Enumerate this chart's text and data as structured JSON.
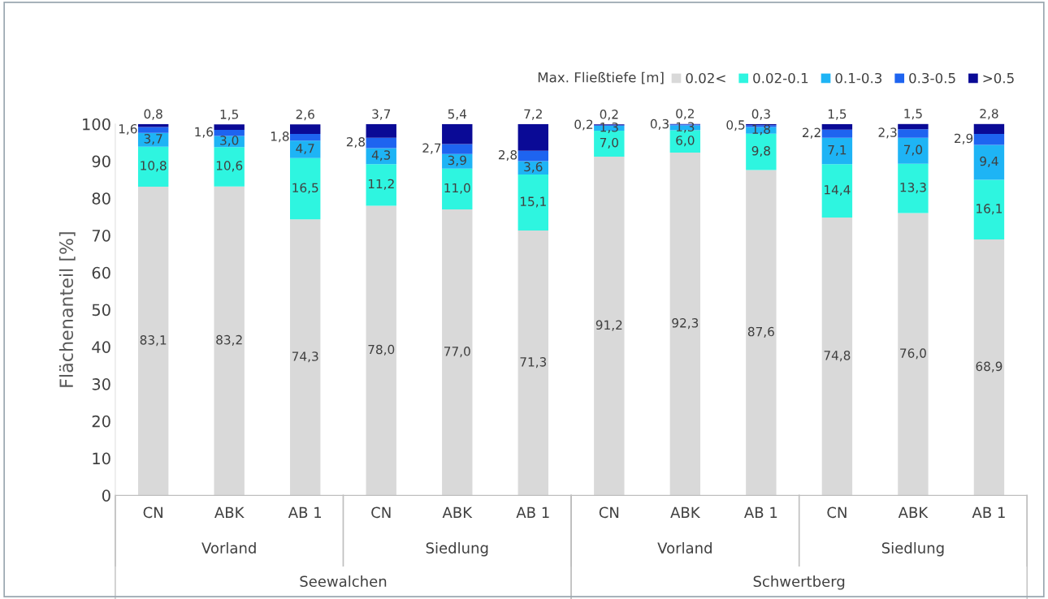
{
  "chart_data": {
    "type": "bar",
    "stacked": true,
    "ylabel": "Flächenanteil [%]",
    "legend_title": "Max. Fließtiefe [m]",
    "legend": "top right",
    "categories": [
      "CN",
      "ABK",
      "AB 1",
      "CN",
      "ABK",
      "AB 1",
      "CN",
      "ABK",
      "AB 1",
      "CN",
      "ABK",
      "AB 1"
    ],
    "annotations": [
      "Vorland",
      "Siedlung",
      "Vorland",
      "Siedlung",
      "Seewalchen",
      "Schwertberg"
    ],
    "ylim": [
      0,
      100
    ],
    "yticks": [
      0,
      10,
      20,
      30,
      40,
      50,
      60,
      70,
      80,
      90,
      100
    ],
    "grid": false,
    "series": [
      {
        "name": "0.02<",
        "color": "#d9d9d9",
        "values": [
          83.1,
          83.2,
          74.3,
          78.0,
          77.0,
          71.3,
          91.2,
          92.3,
          87.6,
          74.8,
          76.0,
          68.9
        ],
        "value_labels": [
          "83,1",
          "83,2",
          "74,3",
          "78,0",
          "77,0",
          "71,3",
          "91,2",
          "92,3",
          "87,6",
          "74,8",
          "76,0",
          "68,9"
        ]
      },
      {
        "name": "0.02-0.1",
        "color": "#2ef5e0",
        "values": [
          10.8,
          10.6,
          16.5,
          11.2,
          11.0,
          15.1,
          7.0,
          6.0,
          9.8,
          14.4,
          13.3,
          16.1
        ],
        "value_labels": [
          "10,8",
          "10,6",
          "16,5",
          "11,2",
          "11,0",
          "15,1",
          "7,0",
          "6,0",
          "9,8",
          "14,4",
          "13,3",
          "16,1"
        ]
      },
      {
        "name": "0.1-0.3",
        "color": "#1eb4f5",
        "values": [
          3.7,
          3.0,
          4.7,
          4.3,
          3.9,
          3.6,
          1.3,
          1.3,
          1.8,
          7.1,
          7.0,
          9.4
        ],
        "value_labels": [
          "3,7",
          "3,0",
          "4,7",
          "4,3",
          "3,9",
          "3,6",
          "1,3",
          "1,3",
          "1,8",
          "7,1",
          "7,0",
          "9,4"
        ]
      },
      {
        "name": "0.3-0.5",
        "color": "#1e64f0",
        "values": [
          1.6,
          1.6,
          1.8,
          2.8,
          2.7,
          2.8,
          0.2,
          0.3,
          0.5,
          2.2,
          2.3,
          2.9
        ],
        "value_labels": [
          "1,6",
          "1,6",
          "1,8",
          "2,8",
          "2,7",
          "2,8",
          "0,2",
          "0,3",
          "0,5",
          "2,2",
          "2,3",
          "2,9"
        ]
      },
      {
        "name": ">0.5",
        "color": "#0a0a96",
        "values": [
          0.8,
          1.5,
          2.6,
          3.7,
          5.4,
          7.2,
          0.2,
          0.2,
          0.3,
          1.5,
          1.5,
          2.8
        ],
        "value_labels": [
          "0,8",
          "1,5",
          "2,6",
          "3,7",
          "5,4",
          "7,2",
          "0,2",
          "0,2",
          "0,3",
          "1,5",
          "1,5",
          "2,8"
        ]
      }
    ]
  }
}
